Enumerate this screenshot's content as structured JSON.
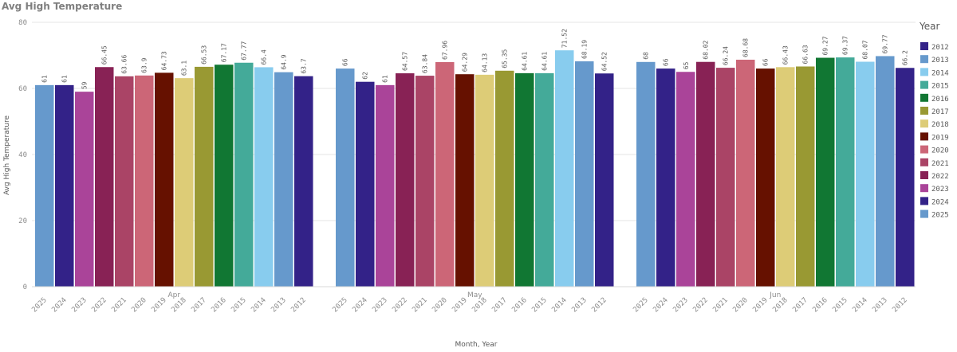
{
  "chart_data": {
    "type": "bar",
    "title": "Avg High Temperature",
    "ylabel": "Avg High Temperature",
    "xlabel": "Month, Year",
    "ylim": [
      0,
      80
    ],
    "yticks": [
      0,
      20,
      40,
      60,
      80
    ],
    "grid": true,
    "legend": {
      "title": "Year",
      "placement": "right",
      "entries": [
        {
          "name": "2012",
          "color": "#332288"
        },
        {
          "name": "2013",
          "color": "#6699CC"
        },
        {
          "name": "2014",
          "color": "#88CCEE"
        },
        {
          "name": "2015",
          "color": "#44AA99"
        },
        {
          "name": "2016",
          "color": "#117733"
        },
        {
          "name": "2017",
          "color": "#999933"
        },
        {
          "name": "2018",
          "color": "#DDCC77"
        },
        {
          "name": "2019",
          "color": "#661100"
        },
        {
          "name": "2020",
          "color": "#CC6677"
        },
        {
          "name": "2021",
          "color": "#AA4466"
        },
        {
          "name": "2022",
          "color": "#882255"
        },
        {
          "name": "2023",
          "color": "#AA4499"
        },
        {
          "name": "2024",
          "color": "#332288"
        },
        {
          "name": "2025",
          "color": "#6699CC"
        }
      ]
    },
    "groups": [
      {
        "month": "Apr",
        "bars": [
          {
            "year": "2025",
            "value": 61,
            "label": "61"
          },
          {
            "year": "2024",
            "value": 61,
            "label": "61"
          },
          {
            "year": "2023",
            "value": 59,
            "label": "59"
          },
          {
            "year": "2022",
            "value": 66.45,
            "label": "66.45"
          },
          {
            "year": "2021",
            "value": 63.66,
            "label": "63.66"
          },
          {
            "year": "2020",
            "value": 63.9,
            "label": "63.9"
          },
          {
            "year": "2019",
            "value": 64.73,
            "label": "64.73"
          },
          {
            "year": "2018",
            "value": 63.1,
            "label": "63.1"
          },
          {
            "year": "2017",
            "value": 66.53,
            "label": "66.53"
          },
          {
            "year": "2016",
            "value": 67.17,
            "label": "67.17"
          },
          {
            "year": "2015",
            "value": 67.77,
            "label": "67.77"
          },
          {
            "year": "2014",
            "value": 66.4,
            "label": "66.4"
          },
          {
            "year": "2013",
            "value": 64.9,
            "label": "64.9"
          },
          {
            "year": "2012",
            "value": 63.7,
            "label": "63.7"
          }
        ]
      },
      {
        "month": "May",
        "bars": [
          {
            "year": "2025",
            "value": 66,
            "label": "66"
          },
          {
            "year": "2024",
            "value": 62,
            "label": "62"
          },
          {
            "year": "2023",
            "value": 61,
            "label": "61"
          },
          {
            "year": "2022",
            "value": 64.57,
            "label": "64.57"
          },
          {
            "year": "2021",
            "value": 63.84,
            "label": "63.84"
          },
          {
            "year": "2020",
            "value": 67.96,
            "label": "67.96"
          },
          {
            "year": "2019",
            "value": 64.29,
            "label": "64.29"
          },
          {
            "year": "2018",
            "value": 64.13,
            "label": "64.13"
          },
          {
            "year": "2017",
            "value": 65.35,
            "label": "65.35"
          },
          {
            "year": "2016",
            "value": 64.61,
            "label": "64.61"
          },
          {
            "year": "2015",
            "value": 64.61,
            "label": "64.61"
          },
          {
            "year": "2014",
            "value": 71.52,
            "label": "71.52"
          },
          {
            "year": "2013",
            "value": 68.19,
            "label": "68.19"
          },
          {
            "year": "2012",
            "value": 64.52,
            "label": "64.52"
          }
        ]
      },
      {
        "month": "Jun",
        "bars": [
          {
            "year": "2025",
            "value": 68,
            "label": "68"
          },
          {
            "year": "2024",
            "value": 66,
            "label": "66"
          },
          {
            "year": "2023",
            "value": 65,
            "label": "65"
          },
          {
            "year": "2022",
            "value": 68.02,
            "label": "68.02"
          },
          {
            "year": "2021",
            "value": 66.24,
            "label": "66.24"
          },
          {
            "year": "2020",
            "value": 68.68,
            "label": "68.68"
          },
          {
            "year": "2019",
            "value": 66,
            "label": "66"
          },
          {
            "year": "2018",
            "value": 66.43,
            "label": "66.43"
          },
          {
            "year": "2017",
            "value": 66.63,
            "label": "66.63"
          },
          {
            "year": "2016",
            "value": 69.27,
            "label": "69.27"
          },
          {
            "year": "2015",
            "value": 69.37,
            "label": "69.37"
          },
          {
            "year": "2014",
            "value": 68.07,
            "label": "68.07"
          },
          {
            "year": "2013",
            "value": 69.77,
            "label": "69.77"
          },
          {
            "year": "2012",
            "value": 66.2,
            "label": "66.2"
          }
        ]
      }
    ]
  }
}
